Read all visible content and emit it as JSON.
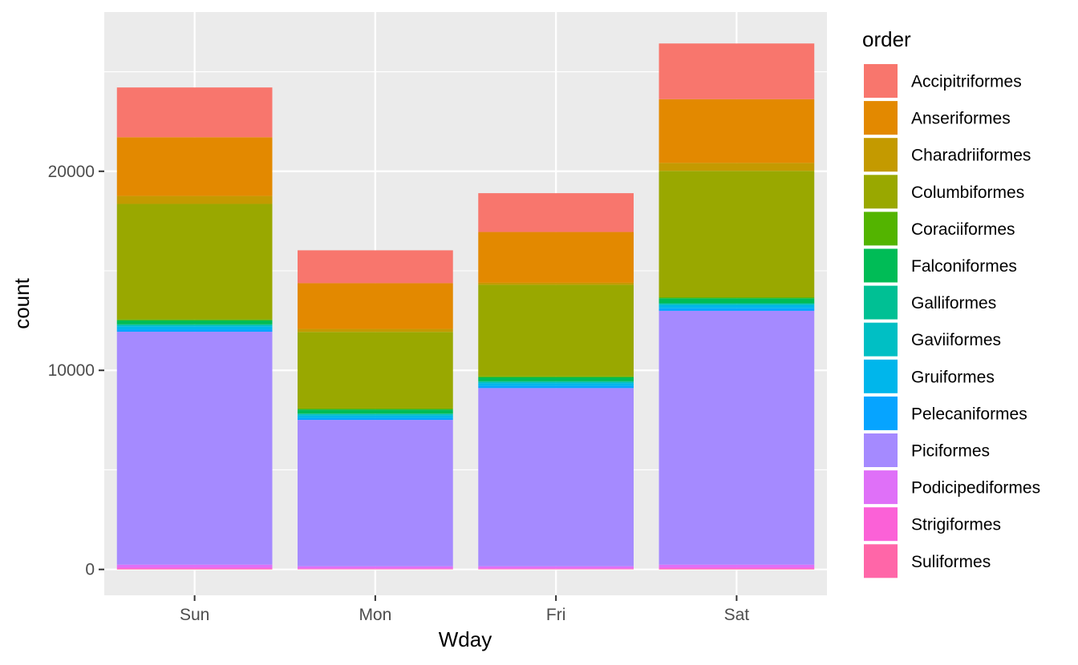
{
  "chart_data": {
    "type": "bar",
    "stacked": true,
    "xlabel": "Wday",
    "ylabel": "count",
    "legend_title": "order",
    "legend_position": "right",
    "grid": true,
    "ylim": [
      -1300,
      28000
    ],
    "yticks": [
      0,
      10000,
      20000
    ],
    "categories": [
      "Sun",
      "Mon",
      "Fri",
      "Sat"
    ],
    "series": [
      {
        "name": "Accipitriformes",
        "color": "#F8766D",
        "values": [
          2500,
          1650,
          1950,
          2800
        ]
      },
      {
        "name": "Anseriformes",
        "color": "#E38900",
        "values": [
          2950,
          2300,
          2550,
          3200
        ]
      },
      {
        "name": "Charadriiformes",
        "color": "#C49A00",
        "values": [
          400,
          150,
          100,
          400
        ]
      },
      {
        "name": "Columbiformes",
        "color": "#99A800",
        "values": [
          5800,
          3850,
          4600,
          6350
        ]
      },
      {
        "name": "Coraciiformes",
        "color": "#53B400",
        "values": [
          50,
          50,
          50,
          50
        ]
      },
      {
        "name": "Falconiformes",
        "color": "#00BC56",
        "values": [
          200,
          200,
          200,
          250
        ]
      },
      {
        "name": "Galliformes",
        "color": "#00C094",
        "values": [
          30,
          30,
          30,
          30
        ]
      },
      {
        "name": "Gaviiformes",
        "color": "#00BFC4",
        "values": [
          70,
          70,
          70,
          70
        ]
      },
      {
        "name": "Gruiformes",
        "color": "#00B6EB",
        "values": [
          150,
          120,
          130,
          150
        ]
      },
      {
        "name": "Pelecaniformes",
        "color": "#06A4FF",
        "values": [
          120,
          100,
          110,
          130
        ]
      },
      {
        "name": "Piciformes",
        "color": "#A58AFF",
        "values": [
          11700,
          7350,
          8950,
          12750
        ]
      },
      {
        "name": "Podicipediformes",
        "color": "#DF70F8",
        "values": [
          150,
          100,
          100,
          150
        ]
      },
      {
        "name": "Strigiformes",
        "color": "#FB61D7",
        "values": [
          60,
          40,
          40,
          60
        ]
      },
      {
        "name": "Suliformes",
        "color": "#FF66A8",
        "values": [
          30,
          20,
          20,
          30
        ]
      }
    ]
  }
}
